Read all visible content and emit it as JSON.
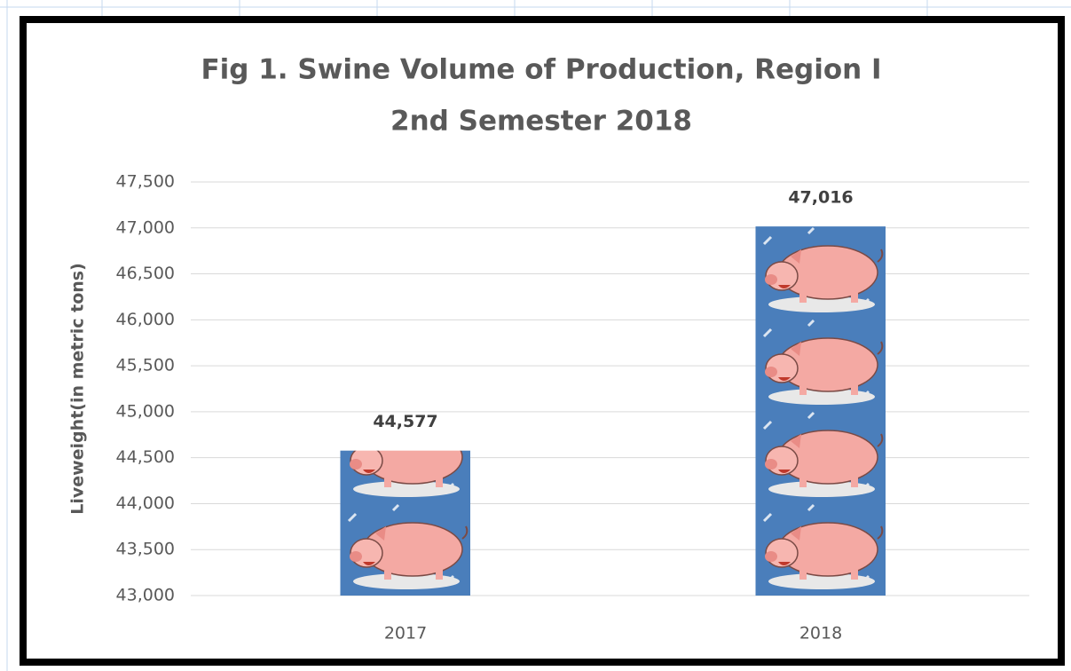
{
  "chart_data": {
    "type": "bar",
    "title": [
      "Fig 1. Swine Volume of Production, Region I",
      "2nd Semester 2018"
    ],
    "y_label": "Liveweight(in metric tons)",
    "categories": [
      "2017",
      "2018"
    ],
    "values": [
      44577,
      47016
    ],
    "value_labels": [
      "44,577",
      "47,016"
    ],
    "color": "#4a7ebb",
    "ylim": [
      43000,
      47500
    ],
    "yticks": [
      {
        "value": 43000,
        "label": "43,000"
      },
      {
        "value": 43500,
        "label": "43,500"
      },
      {
        "value": 44000,
        "label": "44,000"
      },
      {
        "value": 44500,
        "label": "44,500"
      },
      {
        "value": 45000,
        "label": "45,000"
      },
      {
        "value": 45500,
        "label": "45,500"
      },
      {
        "value": 46000,
        "label": "46,000"
      },
      {
        "value": 46500,
        "label": "46,500"
      },
      {
        "value": 47000,
        "label": "47,000"
      },
      {
        "value": 47500,
        "label": "47,500"
      }
    ],
    "grid": true
  }
}
